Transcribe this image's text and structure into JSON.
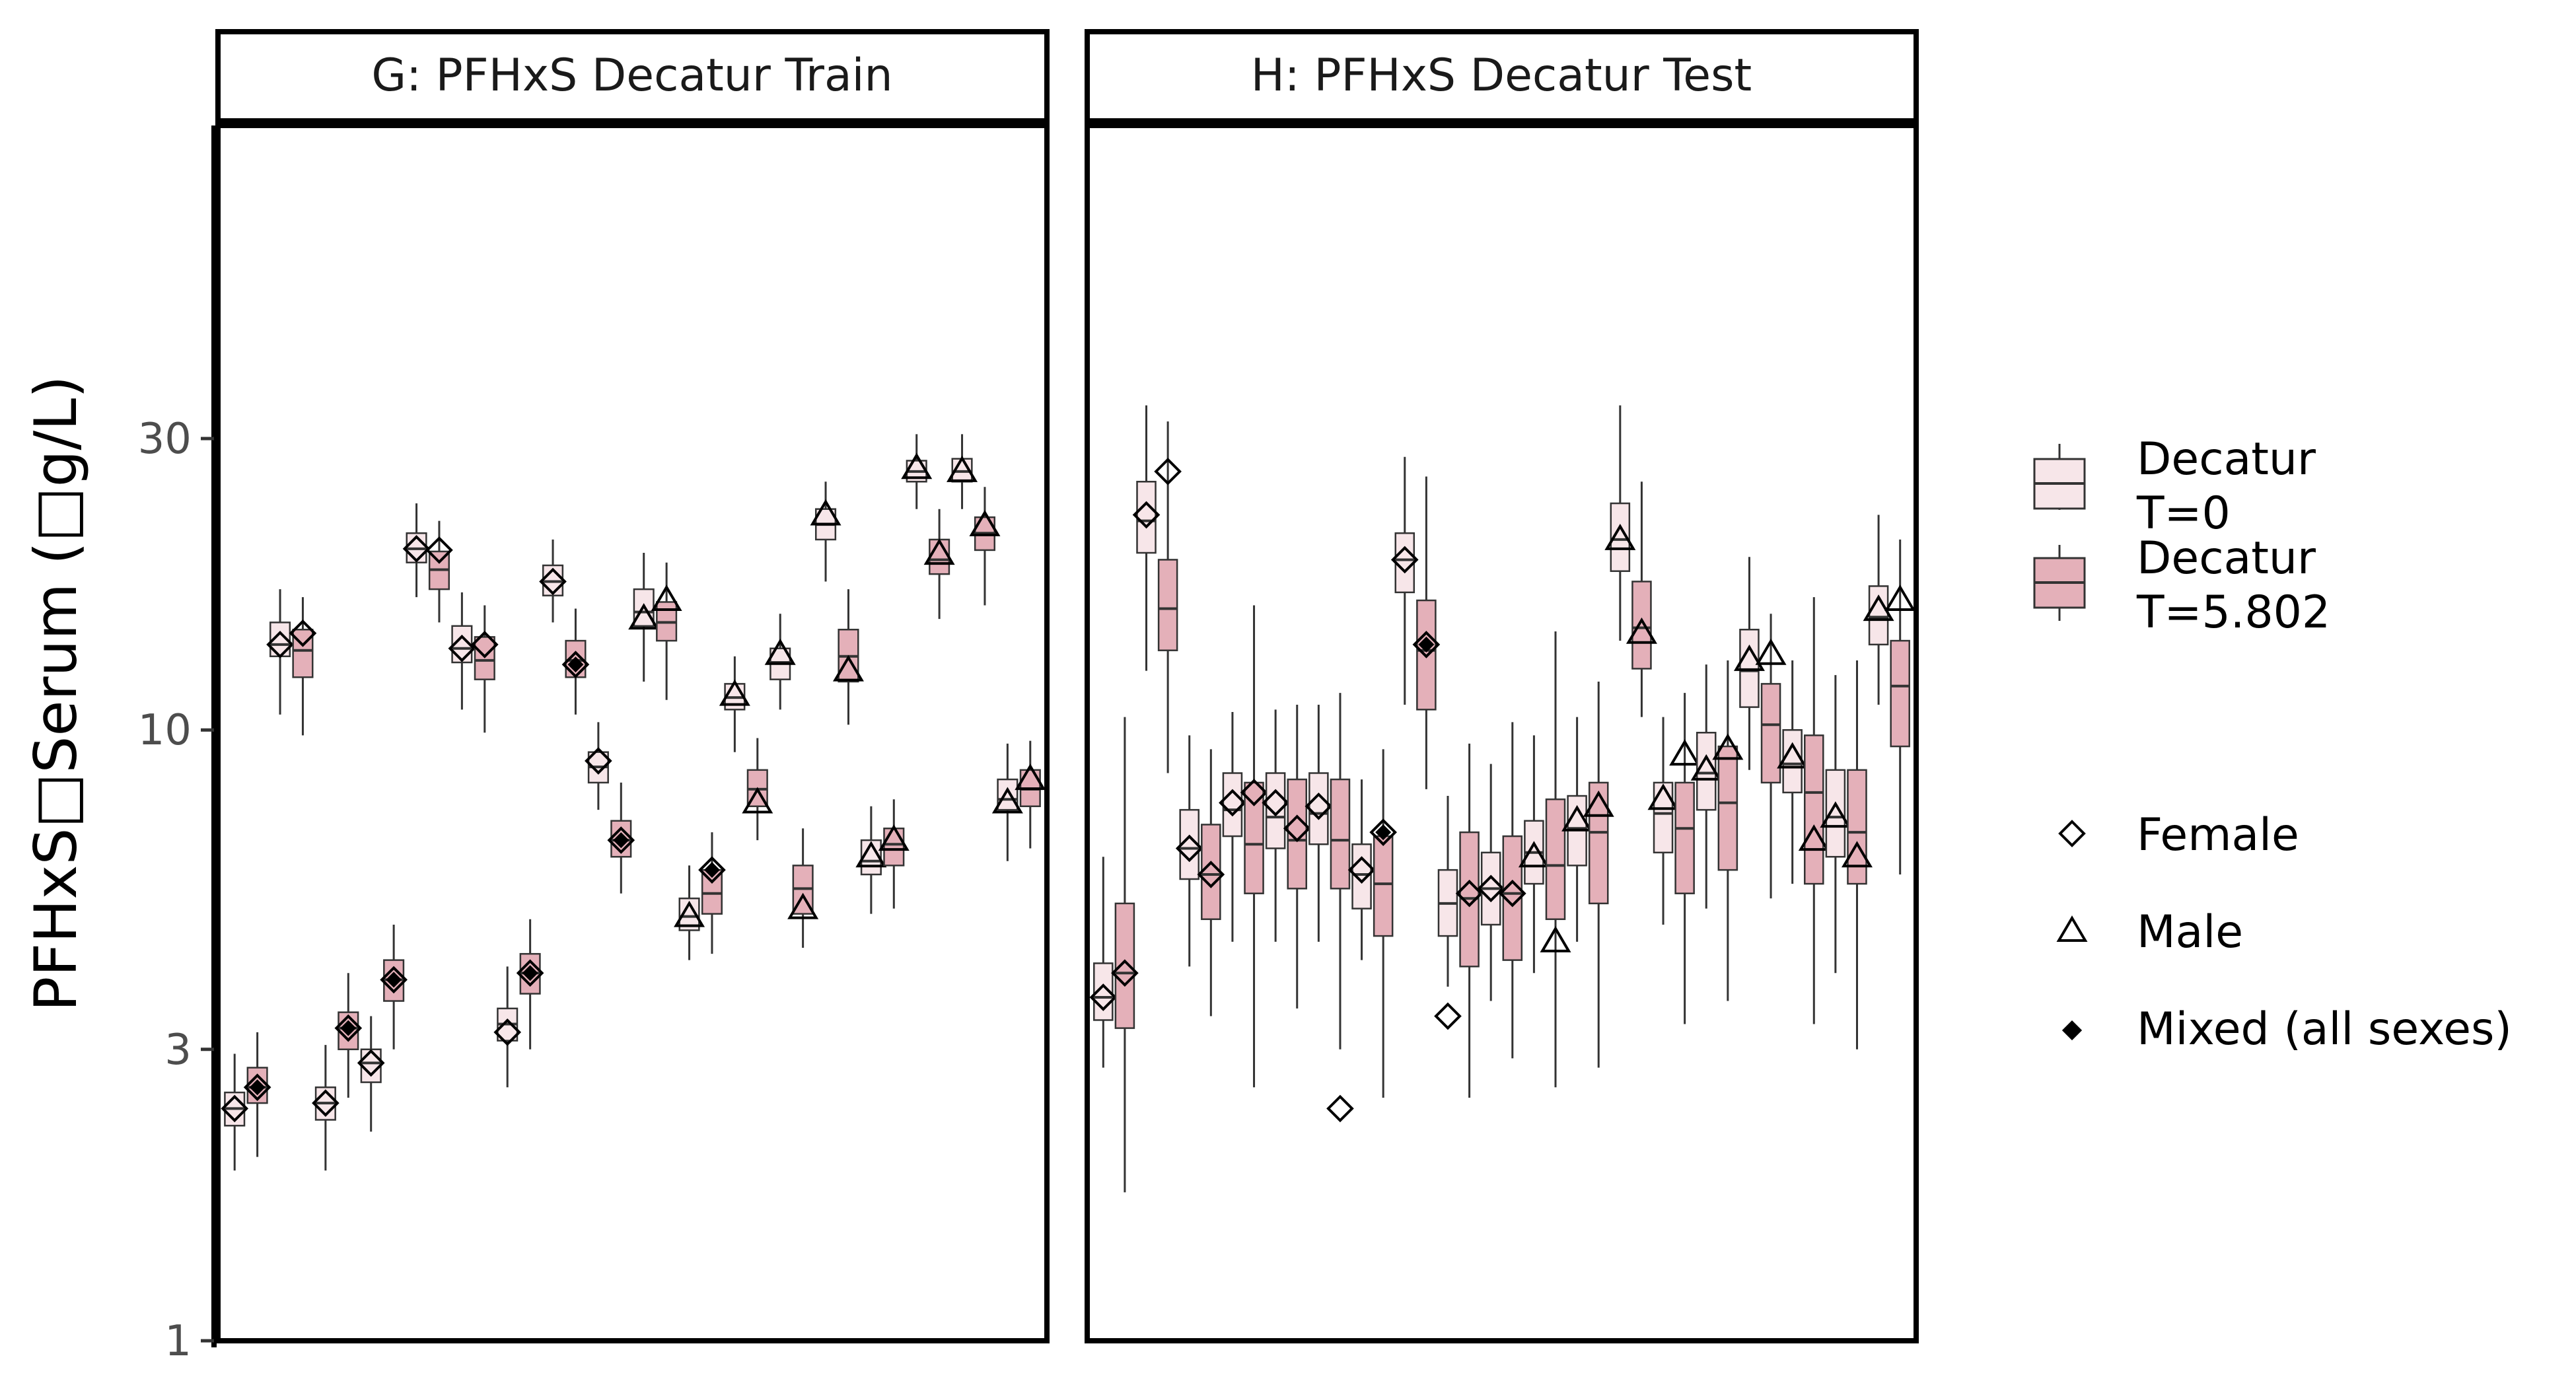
{
  "chart_data": {
    "type": "box",
    "ylabel": "PFHxS□Serum (□g/L)",
    "y_scale": "log",
    "ylim": [
      1,
      100
    ],
    "y_ticks": [
      {
        "value": 1,
        "label": "1"
      },
      {
        "value": 3,
        "label": "3"
      },
      {
        "value": 10,
        "label": "10"
      },
      {
        "value": 30,
        "label": "30"
      }
    ],
    "grid": false,
    "colors": {
      "t0": "#f7e6e9",
      "t5": "#e4b0b9",
      "frame": "#000000",
      "whisker": "#333333",
      "tick_text": "#4d4d4d"
    },
    "legend": {
      "position": "right",
      "fill_items": [
        {
          "label_line1": "Decatur",
          "label_line2": "T=0",
          "color": "#f7e6e9"
        },
        {
          "label_line1": "Decatur",
          "label_line2": "T=5.802",
          "color": "#e4b0b9"
        }
      ],
      "shape_items": [
        {
          "label": "Female",
          "shape": "open-diamond"
        },
        {
          "label": "Male",
          "shape": "open-triangle"
        },
        {
          "label": "Mixed (all sexes)",
          "shape": "filled-diamond"
        }
      ]
    },
    "panels": [
      {
        "title": "G: PFHxS Decatur Train",
        "boxes": [
          {
            "t": 0,
            "lw": 1.9,
            "q1": 2.25,
            "med": 2.4,
            "q3": 2.55,
            "hw": 2.95,
            "marker": "open-diamond",
            "obs": 2.4
          },
          {
            "t": 1,
            "lw": 2.0,
            "q1": 2.45,
            "med": 2.6,
            "q3": 2.8,
            "hw": 3.2,
            "marker": "filled-diamond",
            "obs": 2.6
          },
          {
            "t": 0,
            "lw": 10.6,
            "q1": 13.2,
            "med": 13.8,
            "q3": 15.0,
            "hw": 17.0,
            "marker": "open-diamond",
            "obs": 13.8
          },
          {
            "t": 1,
            "lw": 9.8,
            "q1": 12.2,
            "med": 13.5,
            "q3": 14.6,
            "hw": 16.5,
            "marker": "open-diamond",
            "obs": 14.4
          },
          {
            "t": 0,
            "lw": 1.9,
            "q1": 2.3,
            "med": 2.45,
            "q3": 2.6,
            "hw": 3.05,
            "marker": "open-diamond",
            "obs": 2.45
          },
          {
            "t": 1,
            "lw": 2.5,
            "q1": 3.0,
            "med": 3.25,
            "q3": 3.45,
            "hw": 4.0,
            "marker": "filled-diamond",
            "obs": 3.25
          },
          {
            "t": 0,
            "lw": 2.2,
            "q1": 2.65,
            "med": 2.85,
            "q3": 3.0,
            "hw": 3.4,
            "marker": "open-diamond",
            "obs": 2.85
          },
          {
            "t": 1,
            "lw": 3.0,
            "q1": 3.6,
            "med": 3.9,
            "q3": 4.2,
            "hw": 4.8,
            "marker": "filled-diamond",
            "obs": 3.9
          },
          {
            "t": 0,
            "lw": 16.5,
            "q1": 18.8,
            "med": 19.8,
            "q3": 21.0,
            "hw": 23.5,
            "marker": "open-diamond",
            "obs": 19.8
          },
          {
            "t": 1,
            "lw": 15.0,
            "q1": 17.0,
            "med": 18.3,
            "q3": 19.6,
            "hw": 22.0,
            "marker": "open-diamond",
            "obs": 19.7
          },
          {
            "t": 0,
            "lw": 10.8,
            "q1": 12.9,
            "med": 13.6,
            "q3": 14.8,
            "hw": 16.8,
            "marker": "open-diamond",
            "obs": 13.6
          },
          {
            "t": 1,
            "lw": 9.9,
            "q1": 12.1,
            "med": 13.0,
            "q3": 14.2,
            "hw": 16.0,
            "marker": "open-diamond",
            "obs": 13.8
          },
          {
            "t": 0,
            "lw": 2.6,
            "q1": 3.1,
            "med": 3.3,
            "q3": 3.5,
            "hw": 4.1,
            "marker": "open-diamond",
            "obs": 3.2
          },
          {
            "t": 1,
            "lw": 3.0,
            "q1": 3.7,
            "med": 4.0,
            "q3": 4.3,
            "hw": 4.9,
            "marker": "filled-diamond",
            "obs": 4.0
          },
          {
            "t": 0,
            "lw": 15.0,
            "q1": 16.6,
            "med": 17.5,
            "q3": 18.6,
            "hw": 20.5,
            "marker": "open-diamond",
            "obs": 17.5
          },
          {
            "t": 1,
            "lw": 10.6,
            "q1": 12.2,
            "med": 13.0,
            "q3": 14.0,
            "hw": 15.8,
            "marker": "filled-diamond",
            "obs": 12.8
          },
          {
            "t": 0,
            "lw": 7.4,
            "q1": 8.2,
            "med": 8.7,
            "q3": 9.2,
            "hw": 10.3,
            "marker": "open-diamond",
            "obs": 8.9
          },
          {
            "t": 1,
            "lw": 5.4,
            "q1": 6.2,
            "med": 6.6,
            "q3": 7.1,
            "hw": 8.2,
            "marker": "filled-diamond",
            "obs": 6.6
          },
          {
            "t": 0,
            "lw": 12.0,
            "q1": 14.8,
            "med": 15.6,
            "q3": 17.0,
            "hw": 19.5,
            "marker": "open-triangle",
            "obs": 15.2
          },
          {
            "t": 1,
            "lw": 11.2,
            "q1": 14.0,
            "med": 15.0,
            "q3": 16.2,
            "hw": 18.8,
            "marker": "open-triangle",
            "obs": 16.3
          },
          {
            "t": 0,
            "lw": 4.2,
            "q1": 4.7,
            "med": 4.95,
            "q3": 5.3,
            "hw": 6.0,
            "marker": "open-triangle",
            "obs": 4.95
          },
          {
            "t": 1,
            "lw": 4.3,
            "q1": 5.0,
            "med": 5.4,
            "q3": 5.9,
            "hw": 6.8,
            "marker": "filled-diamond",
            "obs": 5.9
          },
          {
            "t": 0,
            "lw": 9.2,
            "q1": 10.8,
            "med": 11.3,
            "q3": 11.9,
            "hw": 13.2,
            "marker": "open-triangle",
            "obs": 11.4
          },
          {
            "t": 1,
            "lw": 6.6,
            "q1": 7.5,
            "med": 8.0,
            "q3": 8.6,
            "hw": 9.7,
            "marker": "open-triangle",
            "obs": 7.6
          },
          {
            "t": 0,
            "lw": 10.8,
            "q1": 12.1,
            "med": 12.9,
            "q3": 13.6,
            "hw": 15.5,
            "marker": "open-triangle",
            "obs": 13.3
          },
          {
            "t": 1,
            "lw": 4.4,
            "q1": 5.0,
            "med": 5.5,
            "q3": 6.0,
            "hw": 6.9,
            "marker": "open-triangle",
            "obs": 5.1
          },
          {
            "t": 0,
            "lw": 17.5,
            "q1": 20.5,
            "med": 21.7,
            "q3": 23.0,
            "hw": 25.5,
            "marker": "open-triangle",
            "obs": 22.5
          },
          {
            "t": 1,
            "lw": 10.2,
            "q1": 12.0,
            "med": 13.2,
            "q3": 14.6,
            "hw": 17.0,
            "marker": "open-triangle",
            "obs": 12.5
          },
          {
            "t": 0,
            "lw": 5.0,
            "q1": 5.8,
            "med": 6.1,
            "q3": 6.6,
            "hw": 7.5,
            "marker": "open-triangle",
            "obs": 6.2
          },
          {
            "t": 1,
            "lw": 5.1,
            "q1": 6.0,
            "med": 6.5,
            "q3": 6.9,
            "hw": 7.7,
            "marker": "open-triangle",
            "obs": 6.6
          },
          {
            "t": 0,
            "lw": 23.0,
            "q1": 25.5,
            "med": 26.5,
            "q3": 27.6,
            "hw": 30.5,
            "marker": "open-triangle",
            "obs": 26.8
          },
          {
            "t": 1,
            "lw": 15.2,
            "q1": 18.0,
            "med": 19.0,
            "q3": 20.5,
            "hw": 23.0,
            "marker": "open-triangle",
            "obs": 19.4
          },
          {
            "t": 0,
            "lw": 23.0,
            "q1": 25.5,
            "med": 26.5,
            "q3": 27.8,
            "hw": 30.5,
            "marker": "open-triangle",
            "obs": 26.5
          },
          {
            "t": 1,
            "lw": 16.0,
            "q1": 19.7,
            "med": 21.0,
            "q3": 22.3,
            "hw": 25.0,
            "marker": "open-triangle",
            "obs": 21.6
          },
          {
            "t": 0,
            "lw": 6.1,
            "q1": 7.4,
            "med": 7.7,
            "q3": 8.3,
            "hw": 9.5,
            "marker": "open-triangle",
            "obs": 7.6
          },
          {
            "t": 1,
            "lw": 6.4,
            "q1": 7.5,
            "med": 8.0,
            "q3": 8.6,
            "hw": 9.6,
            "marker": "open-triangle",
            "obs": 8.3
          }
        ]
      },
      {
        "title": "H: PFHxS Decatur Test",
        "boxes": [
          {
            "t": 0,
            "lw": 2.8,
            "q1": 3.35,
            "med": 3.65,
            "q3": 4.15,
            "hw": 6.2,
            "marker": "open-diamond",
            "obs": 3.65
          },
          {
            "t": 1,
            "lw": 1.75,
            "q1": 3.25,
            "med": 4.0,
            "q3": 5.2,
            "hw": 10.5,
            "marker": "open-diamond",
            "obs": 4.0
          },
          {
            "t": 0,
            "lw": 12.5,
            "q1": 19.5,
            "med": 22.0,
            "q3": 25.5,
            "hw": 34.0,
            "marker": "open-diamond",
            "obs": 22.5
          },
          {
            "t": 1,
            "lw": 8.5,
            "q1": 13.5,
            "med": 15.8,
            "q3": 19.0,
            "hw": 32.0,
            "marker": "open-diamond",
            "obs": 26.5
          },
          {
            "t": 0,
            "lw": 4.1,
            "q1": 5.7,
            "med": 6.4,
            "q3": 7.4,
            "hw": 9.8,
            "marker": "open-diamond",
            "obs": 6.4
          },
          {
            "t": 1,
            "lw": 3.4,
            "q1": 4.9,
            "med": 5.8,
            "q3": 7.0,
            "hw": 9.3,
            "marker": "open-diamond",
            "obs": 5.8
          },
          {
            "t": 0,
            "lw": 4.5,
            "q1": 6.7,
            "med": 7.4,
            "q3": 8.5,
            "hw": 10.7,
            "marker": "open-diamond",
            "obs": 7.6
          },
          {
            "t": 1,
            "lw": 2.6,
            "q1": 5.4,
            "med": 6.5,
            "q3": 8.2,
            "hw": 16.0,
            "marker": "open-diamond",
            "obs": 7.9
          },
          {
            "t": 0,
            "lw": 4.5,
            "q1": 6.4,
            "med": 7.2,
            "q3": 8.5,
            "hw": 10.8,
            "marker": "open-diamond",
            "obs": 7.6
          },
          {
            "t": 1,
            "lw": 3.5,
            "q1": 5.5,
            "med": 6.6,
            "q3": 8.3,
            "hw": 11.0,
            "marker": "open-diamond",
            "obs": 6.9
          },
          {
            "t": 0,
            "lw": 4.5,
            "q1": 6.5,
            "med": 7.3,
            "q3": 8.5,
            "hw": 11.0,
            "marker": "open-diamond",
            "obs": 7.5
          },
          {
            "t": 1,
            "lw": 3.0,
            "q1": 5.5,
            "med": 6.6,
            "q3": 8.3,
            "hw": 11.5,
            "marker": "open-diamond",
            "obs": 2.4
          },
          {
            "t": 0,
            "lw": 4.2,
            "q1": 5.1,
            "med": 5.8,
            "q3": 6.5,
            "hw": 8.3,
            "marker": "open-diamond",
            "obs": 5.9
          },
          {
            "t": 1,
            "lw": 2.5,
            "q1": 4.6,
            "med": 5.6,
            "q3": 6.7,
            "hw": 9.3,
            "marker": "filled-diamond",
            "obs": 6.8
          },
          {
            "t": 0,
            "lw": 11.0,
            "q1": 16.8,
            "med": 19.0,
            "q3": 21.0,
            "hw": 28.0,
            "marker": "open-diamond",
            "obs": 19.0
          },
          {
            "t": 1,
            "lw": 8.0,
            "q1": 10.8,
            "med": 13.5,
            "q3": 16.3,
            "hw": 26.0,
            "marker": "filled-diamond",
            "obs": 13.8
          },
          {
            "t": 0,
            "lw": 3.8,
            "q1": 4.6,
            "med": 5.2,
            "q3": 5.9,
            "hw": 7.8,
            "marker": "open-diamond",
            "obs": 3.4
          },
          {
            "t": 1,
            "lw": 2.5,
            "q1": 4.1,
            "med": 5.3,
            "q3": 6.8,
            "hw": 9.5,
            "marker": "open-diamond",
            "obs": 5.4
          },
          {
            "t": 0,
            "lw": 3.6,
            "q1": 4.8,
            "med": 5.5,
            "q3": 6.3,
            "hw": 8.8,
            "marker": "open-diamond",
            "obs": 5.5
          },
          {
            "t": 1,
            "lw": 2.9,
            "q1": 4.2,
            "med": 5.4,
            "q3": 6.7,
            "hw": 10.3,
            "marker": "open-diamond",
            "obs": 5.4
          },
          {
            "t": 0,
            "lw": 4.0,
            "q1": 5.6,
            "med": 6.3,
            "q3": 7.1,
            "hw": 9.8,
            "marker": "open-triangle",
            "obs": 6.2
          },
          {
            "t": 1,
            "lw": 2.6,
            "q1": 4.9,
            "med": 6.0,
            "q3": 7.7,
            "hw": 14.5,
            "marker": "open-triangle",
            "obs": 4.5
          },
          {
            "t": 0,
            "lw": 4.5,
            "q1": 6.0,
            "med": 6.9,
            "q3": 7.8,
            "hw": 10.5,
            "marker": "open-triangle",
            "obs": 7.1
          },
          {
            "t": 1,
            "lw": 2.8,
            "q1": 5.2,
            "med": 6.8,
            "q3": 8.2,
            "hw": 12.0,
            "marker": "open-triangle",
            "obs": 7.5
          },
          {
            "t": 0,
            "lw": 14.0,
            "q1": 18.2,
            "med": 20.5,
            "q3": 23.5,
            "hw": 34.0,
            "marker": "open-triangle",
            "obs": 20.5
          },
          {
            "t": 1,
            "lw": 10.5,
            "q1": 12.6,
            "med": 14.7,
            "q3": 17.5,
            "hw": 25.5,
            "marker": "open-triangle",
            "obs": 14.4
          },
          {
            "t": 0,
            "lw": 4.8,
            "q1": 6.3,
            "med": 7.3,
            "q3": 8.2,
            "hw": 10.5,
            "marker": "open-triangle",
            "obs": 7.7
          },
          {
            "t": 1,
            "lw": 3.3,
            "q1": 5.4,
            "med": 6.9,
            "q3": 8.2,
            "hw": 11.5,
            "marker": "open-triangle",
            "obs": 9.1
          },
          {
            "t": 0,
            "lw": 5.1,
            "q1": 7.4,
            "med": 8.5,
            "q3": 9.9,
            "hw": 12.8,
            "marker": "open-triangle",
            "obs": 8.6
          },
          {
            "t": 1,
            "lw": 3.6,
            "q1": 5.9,
            "med": 7.6,
            "q3": 9.4,
            "hw": 13.0,
            "marker": "open-triangle",
            "obs": 9.3
          },
          {
            "t": 0,
            "lw": 8.6,
            "q1": 10.9,
            "med": 12.5,
            "q3": 14.6,
            "hw": 19.2,
            "marker": "open-triangle",
            "obs": 13.0
          },
          {
            "t": 1,
            "lw": 5.3,
            "q1": 8.2,
            "med": 10.2,
            "q3": 11.9,
            "hw": 15.5,
            "marker": "open-triangle",
            "obs": 13.3
          },
          {
            "t": 0,
            "lw": 5.6,
            "q1": 7.9,
            "med": 8.8,
            "q3": 10.0,
            "hw": 13.0,
            "marker": "open-triangle",
            "obs": 9.0
          },
          {
            "t": 1,
            "lw": 3.3,
            "q1": 5.6,
            "med": 7.9,
            "q3": 9.8,
            "hw": 16.5,
            "marker": "open-triangle",
            "obs": 6.6
          },
          {
            "t": 0,
            "lw": 4.0,
            "q1": 6.2,
            "med": 7.2,
            "q3": 8.6,
            "hw": 12.3,
            "marker": "open-triangle",
            "obs": 7.2
          },
          {
            "t": 1,
            "lw": 3.0,
            "q1": 5.6,
            "med": 6.8,
            "q3": 8.6,
            "hw": 13.0,
            "marker": "open-triangle",
            "obs": 6.2
          },
          {
            "t": 0,
            "lw": 11.0,
            "q1": 13.8,
            "med": 15.3,
            "q3": 17.2,
            "hw": 22.5,
            "marker": "open-triangle",
            "obs": 15.7
          },
          {
            "t": 1,
            "lw": 5.8,
            "q1": 9.4,
            "med": 11.8,
            "q3": 14.0,
            "hw": 20.5,
            "marker": "open-triangle",
            "obs": 16.3
          }
        ]
      }
    ]
  }
}
